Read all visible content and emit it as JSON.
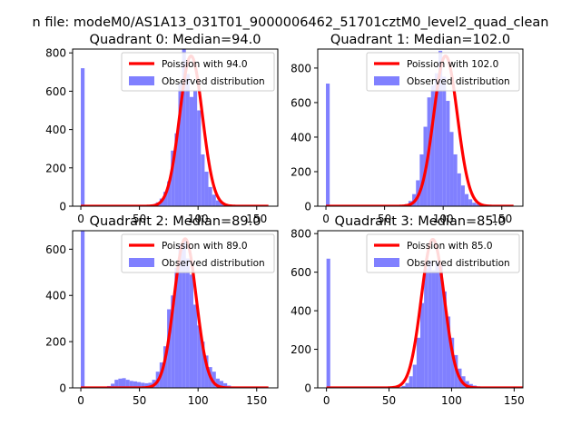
{
  "suptitle": "n file: modeM0/AS1A13_031T01_9000006462_51701cztM0_level2_quad_clean",
  "colors": {
    "observed": "#8080ff",
    "poisson": "#ff0000"
  },
  "chart_data": [
    {
      "type": "bar",
      "title": "Quadrant 0: Median=94.0",
      "legend_position": "top-right",
      "legend": [
        "Poission with 94.0",
        "Observed distribution"
      ],
      "xlim": [
        -7,
        168
      ],
      "ylim": [
        0,
        820
      ],
      "xticks": [
        0,
        50,
        100,
        150
      ],
      "yticks": [
        0,
        200,
        400,
        600,
        800
      ],
      "poisson_mean": 94.0,
      "poisson_peak": 784,
      "series": [
        {
          "name": "Observed distribution",
          "bins_start": 0,
          "bin_width": 3.2,
          "values": [
            720,
            0,
            0,
            0,
            0,
            0,
            0,
            0,
            0,
            0,
            0,
            0,
            0,
            0,
            0,
            1,
            1,
            2,
            4,
            10,
            20,
            40,
            75,
            130,
            290,
            380,
            640,
            830,
            690,
            570,
            600,
            500,
            270,
            180,
            100,
            60,
            30,
            20,
            12,
            8,
            5,
            2,
            1,
            1,
            0,
            0,
            0,
            0,
            0,
            0
          ]
        },
        {
          "name": "Poission with 94.0"
        }
      ]
    },
    {
      "type": "bar",
      "title": "Quadrant 1: Median=102.0",
      "legend_position": "top-right",
      "legend": [
        "Poission with 102.0",
        "Observed distribution"
      ],
      "xlim": [
        -7,
        168
      ],
      "ylim": [
        0,
        910
      ],
      "xticks": [
        0,
        50,
        100,
        150
      ],
      "yticks": [
        0,
        200,
        400,
        600,
        800
      ],
      "poisson_mean": 102.0,
      "poisson_peak": 870,
      "series": [
        {
          "name": "Observed distribution",
          "bins_start": 0,
          "bin_width": 3.2,
          "values": [
            710,
            0,
            0,
            0,
            0,
            0,
            0,
            0,
            0,
            0,
            0,
            0,
            0,
            0,
            0,
            0,
            0,
            0,
            1,
            2,
            5,
            12,
            30,
            70,
            150,
            300,
            460,
            630,
            700,
            770,
            900,
            750,
            610,
            430,
            300,
            190,
            120,
            70,
            40,
            20,
            12,
            6,
            3,
            1,
            1,
            0,
            0,
            0,
            0,
            0
          ]
        },
        {
          "name": "Poission with 102.0"
        }
      ]
    },
    {
      "type": "bar",
      "title": "Quadrant 2: Median=89.0",
      "legend_position": "top-right",
      "legend": [
        "Poission with 89.0",
        "Observed distribution"
      ],
      "xlim": [
        -7,
        168
      ],
      "ylim": [
        0,
        680
      ],
      "xticks": [
        0,
        50,
        100,
        150
      ],
      "yticks": [
        0,
        200,
        400,
        600
      ],
      "poisson_mean": 89.0,
      "poisson_peak": 645,
      "series": [
        {
          "name": "Observed distribution",
          "bins_start": 0,
          "bin_width": 3.2,
          "values": [
            690,
            0,
            0,
            0,
            0,
            0,
            0,
            8,
            18,
            35,
            40,
            42,
            35,
            30,
            28,
            25,
            22,
            20,
            22,
            35,
            70,
            110,
            180,
            340,
            400,
            520,
            620,
            640,
            560,
            490,
            360,
            270,
            200,
            140,
            90,
            70,
            40,
            30,
            20,
            10,
            6,
            3,
            1,
            0,
            0,
            0,
            0,
            0,
            0,
            0
          ]
        },
        {
          "name": "Poission with 89.0"
        }
      ]
    },
    {
      "type": "bar",
      "title": "Quadrant 3: Median=85.0",
      "legend_position": "top-right",
      "legend": [
        "Poission with 85.0",
        "Observed distribution"
      ],
      "xlim": [
        -7,
        157
      ],
      "ylim": [
        0,
        815
      ],
      "xticks": [
        0,
        50,
        100,
        150
      ],
      "yticks": [
        0,
        200,
        400,
        600,
        800
      ],
      "poisson_mean": 85.0,
      "poisson_peak": 770,
      "series": [
        {
          "name": "Observed distribution",
          "bins_start": 0,
          "bin_width": 3.0,
          "values": [
            670,
            0,
            0,
            0,
            0,
            0,
            0,
            0,
            0,
            0,
            0,
            0,
            0,
            0,
            0,
            0,
            0,
            0,
            1,
            3,
            10,
            25,
            60,
            120,
            260,
            440,
            620,
            660,
            610,
            660,
            640,
            500,
            370,
            260,
            170,
            100,
            60,
            35,
            20,
            12,
            8,
            5,
            2,
            1,
            0,
            0,
            0,
            0,
            0,
            0
          ]
        },
        {
          "name": "Poission with 85.0"
        }
      ]
    }
  ]
}
